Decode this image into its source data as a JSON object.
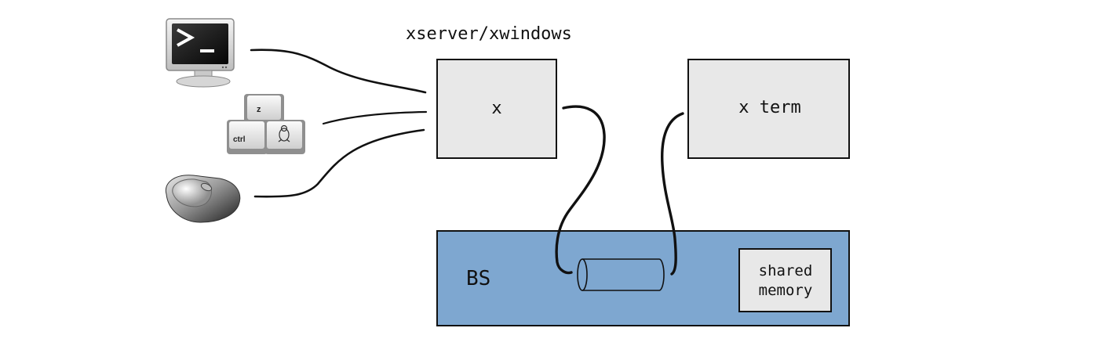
{
  "diagram": {
    "title": "xserver/xwindows",
    "x_server_box": {
      "label": "x"
    },
    "xterm_box": {
      "label": "x term"
    },
    "os_box": {
      "label": "BS"
    },
    "shared_memory_box": {
      "line1": "shared",
      "line2": "memory"
    },
    "keyboard_keys": {
      "top_key": "z",
      "left_key": "ctrl"
    },
    "colors": {
      "box_fill": "#e8e8e8",
      "os_fill": "#7ea7d0",
      "stroke": "#111111",
      "terminal_screen": "#111111",
      "terminal_prompt": "#ffffff"
    },
    "icons": [
      "terminal-monitor-icon",
      "keyboard-keys-icon",
      "mouse-icon",
      "pipe-cylinder-icon"
    ]
  }
}
